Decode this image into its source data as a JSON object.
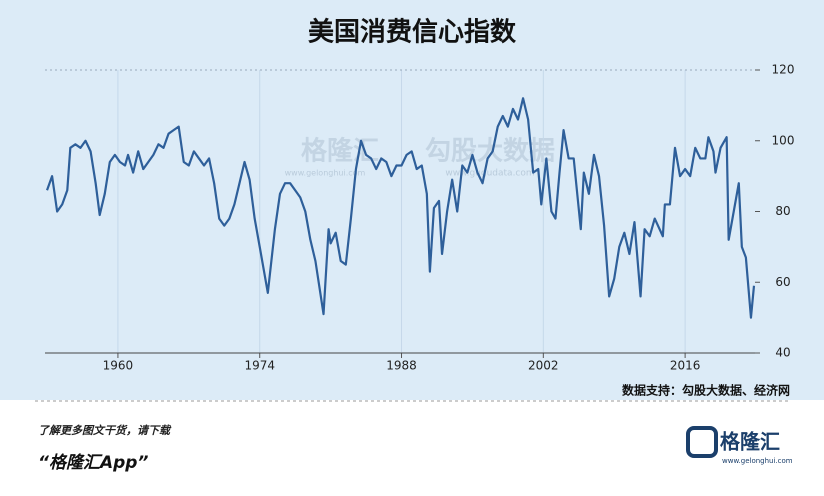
{
  "chart_data": {
    "type": "line",
    "title": "美国消费信心指数",
    "source": "数据支持：勾股大数据、经济网",
    "x": [
      1953.0,
      1953.5,
      1954.0,
      1954.5,
      1955.0,
      1955.3,
      1955.8,
      1956.3,
      1956.8,
      1957.3,
      1957.8,
      1958.2,
      1958.7,
      1959.2,
      1959.7,
      1960.2,
      1960.7,
      1961.0,
      1961.5,
      1962.0,
      1962.5,
      1963.0,
      1963.5,
      1964.0,
      1964.5,
      1965.0,
      1965.5,
      1966.0,
      1966.5,
      1967.0,
      1967.5,
      1968.0,
      1968.5,
      1969.0,
      1969.5,
      1970.0,
      1970.5,
      1971.0,
      1971.5,
      1972.0,
      1972.5,
      1973.0,
      1973.5,
      1974.0,
      1974.8,
      1975.5,
      1976.0,
      1976.5,
      1977.0,
      1977.5,
      1978.0,
      1978.5,
      1979.0,
      1979.5,
      1980.3,
      1980.8,
      1981.0,
      1981.5,
      1982.0,
      1982.5,
      1983.0,
      1983.5,
      1984.0,
      1984.5,
      1985.0,
      1985.5,
      1986.0,
      1986.5,
      1987.0,
      1987.5,
      1988.0,
      1988.5,
      1989.0,
      1989.5,
      1990.0,
      1990.5,
      1990.8,
      1991.2,
      1991.7,
      1992.0,
      1992.5,
      1993.0,
      1993.5,
      1994.0,
      1994.5,
      1995.0,
      1995.5,
      1996.0,
      1996.5,
      1997.0,
      1997.5,
      1998.0,
      1998.5,
      1999.0,
      1999.5,
      2000.0,
      2000.5,
      2001.0,
      2001.5,
      2001.8,
      2002.3,
      2002.8,
      2003.2,
      2003.6,
      2004.0,
      2004.5,
      2005.0,
      2005.7,
      2006.0,
      2006.5,
      2007.0,
      2007.5,
      2008.0,
      2008.5,
      2009.0,
      2009.5,
      2010.0,
      2010.5,
      2011.0,
      2011.6,
      2012.0,
      2012.5,
      2013.0,
      2013.8,
      2014.0,
      2014.5,
      2015.0,
      2015.5,
      2016.0,
      2016.5,
      2017.0,
      2017.5,
      2018.0,
      2018.3,
      2018.8,
      2019.0,
      2019.5,
      2020.1,
      2020.3,
      2020.8,
      2021.3,
      2021.6,
      2022.0,
      2022.5,
      2022.8
    ],
    "series": [
      {
        "name": "消费信心指数",
        "color": "#2e5f9a",
        "values": [
          86,
          90,
          80,
          82,
          86,
          98,
          99,
          98,
          100,
          97,
          88,
          79,
          85,
          94,
          96,
          94,
          93,
          96,
          91,
          97,
          92,
          94,
          96,
          99,
          98,
          102,
          103,
          104,
          94,
          93,
          97,
          95,
          93,
          95,
          88,
          78,
          76,
          78,
          82,
          88,
          94,
          89,
          78,
          70,
          57,
          75,
          85,
          88,
          88,
          86,
          84,
          80,
          72,
          66,
          51,
          75,
          71,
          74,
          66,
          65,
          78,
          92,
          100,
          96,
          95,
          92,
          95,
          94,
          90,
          93,
          93,
          96,
          97,
          92,
          93,
          85,
          63,
          81,
          83,
          68,
          80,
          89,
          80,
          93,
          91,
          96,
          91,
          88,
          95,
          97,
          104,
          107,
          104,
          109,
          106,
          112,
          106,
          91,
          92,
          82,
          95,
          80,
          78,
          91,
          103,
          95,
          95,
          75,
          91,
          85,
          96,
          90,
          76,
          56,
          61,
          70,
          74,
          68,
          77,
          56,
          75,
          73,
          78,
          73,
          82,
          82,
          98,
          90,
          92,
          90,
          98,
          95,
          95,
          101,
          97,
          91,
          98,
          101,
          72,
          80,
          88,
          70,
          67,
          50,
          59
        ]
      }
    ],
    "xlim": [
      1952.8,
      2022.9
    ],
    "xticks": [
      1960,
      1974,
      1988,
      2002,
      2016
    ],
    "ylim": [
      40,
      120
    ],
    "yticks": [
      40,
      60,
      80,
      100,
      120
    ],
    "grid": "x"
  },
  "watermark": {
    "brand": "格隆汇",
    "brand_url": "www.gelonghui.com",
    "partner": "勾股大数据",
    "partner_url": "www.gugudata.com"
  },
  "footer": {
    "tagline": "了解更多图文干货，请下载",
    "app": "“格隆汇App”",
    "logo": "格隆汇",
    "url": "www.gelonghui.com"
  }
}
